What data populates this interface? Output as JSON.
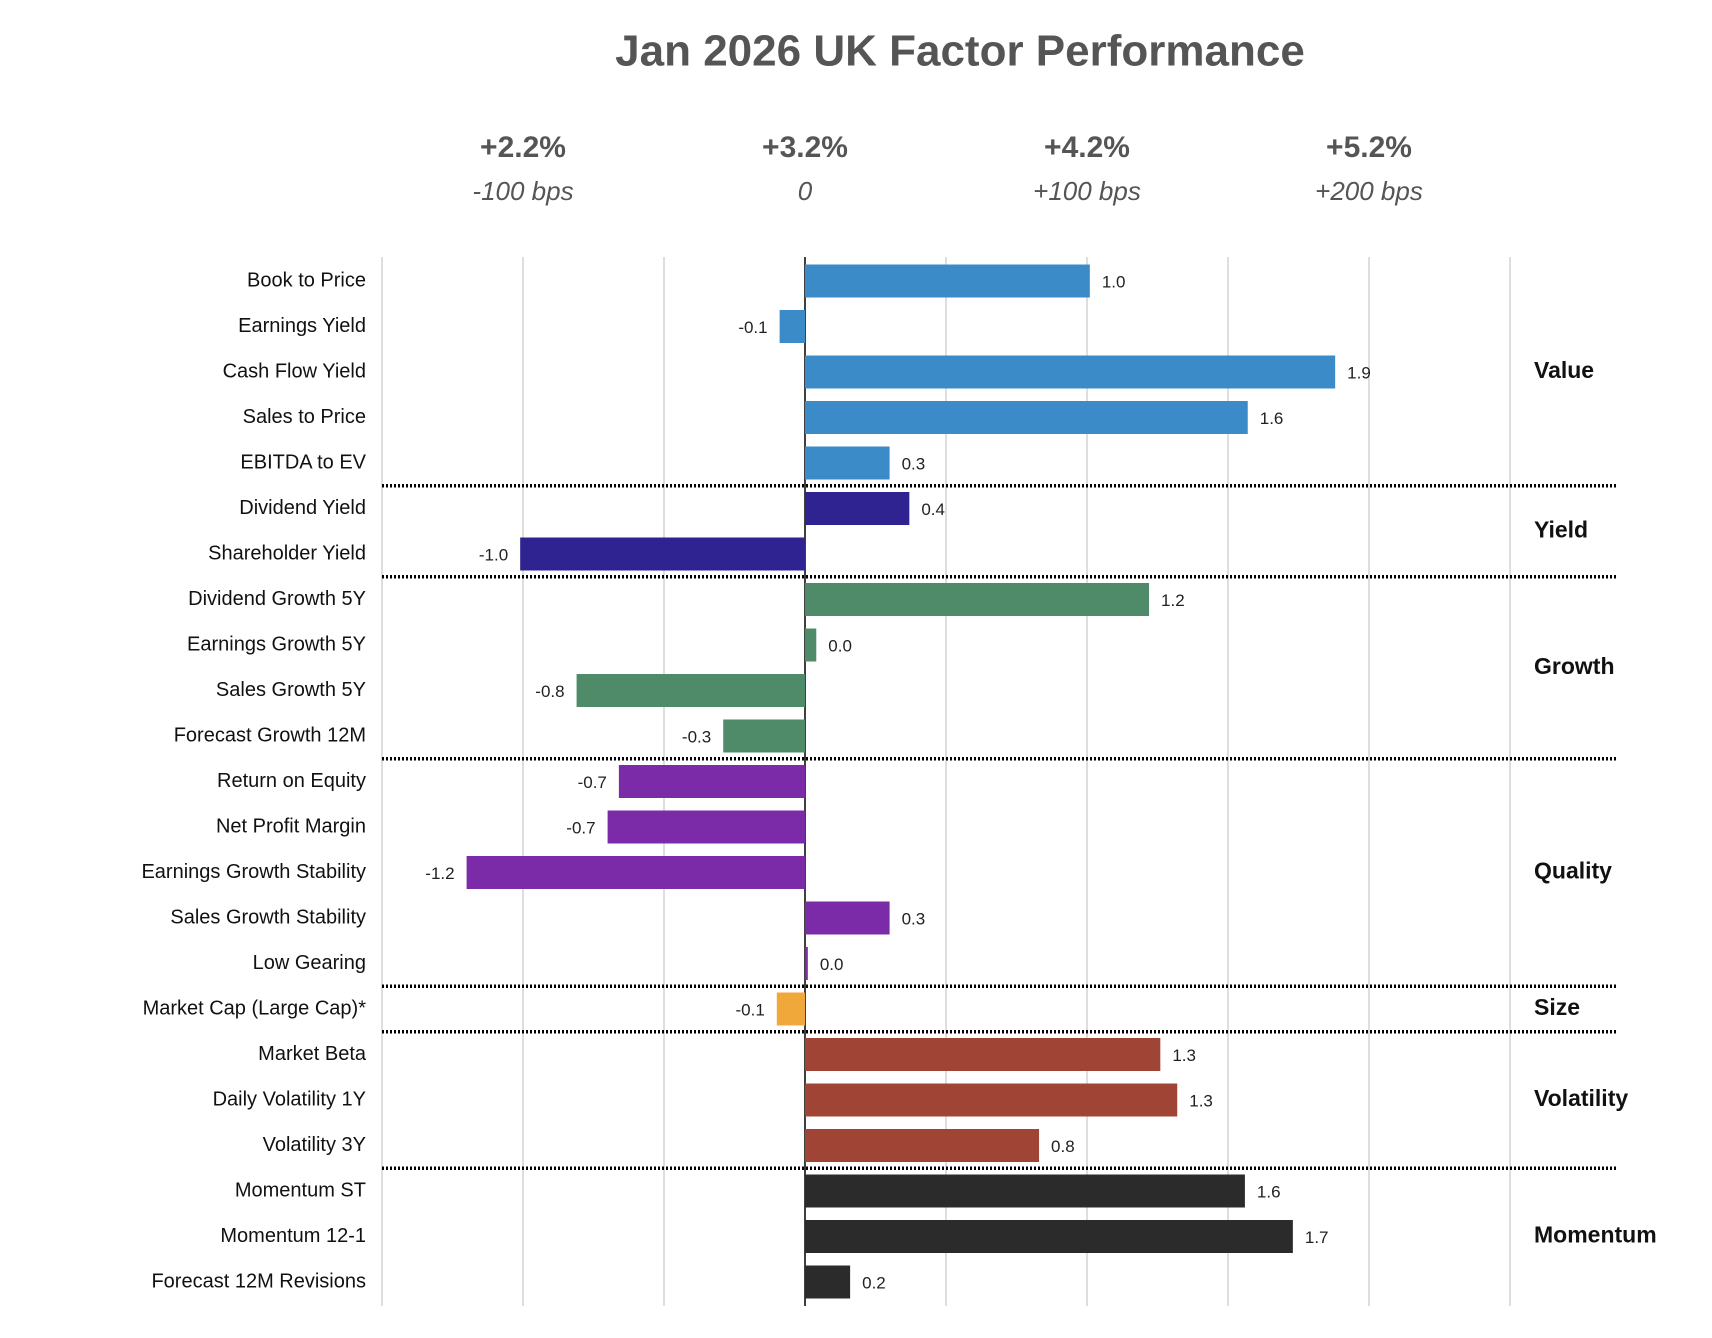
{
  "chart_data": {
    "type": "bar",
    "orientation": "horizontal",
    "title": "Jan 2026 UK Factor Performance",
    "xlim": [
      -1.5,
      2.5
    ],
    "xticks": [
      -1.5,
      -1,
      -0.5,
      0,
      0.5,
      1,
      1.5,
      2,
      2.5
    ],
    "grid": true,
    "top_labels": [
      {
        "value": -1,
        "label": "+2.2%",
        "sublabel": "-100 bps"
      },
      {
        "value": 0,
        "label": "+3.2%",
        "sublabel": "0"
      },
      {
        "value": 1,
        "label": "+4.2%",
        "sublabel": "+100 bps"
      },
      {
        "value": 2,
        "label": "+5.2%",
        "sublabel": "+200 bps"
      }
    ],
    "groups": [
      {
        "name": "Value",
        "color": "#3b8bc9",
        "categories": [
          "Book to Price",
          "Earnings Yield",
          "Cash Flow Yield",
          "Sales to Price",
          "EBITDA to EV"
        ],
        "values": [
          1.01,
          -0.09,
          1.88,
          1.57,
          0.3
        ],
        "value_labels": [
          "1.0",
          "-0.1",
          "1.9",
          "1.6",
          "0.3"
        ]
      },
      {
        "name": "Yield",
        "color": "#2e2391",
        "categories": [
          "Dividend Yield",
          "Shareholder Yield"
        ],
        "values": [
          0.37,
          -1.01
        ],
        "value_labels": [
          "0.4",
          "-1.0"
        ]
      },
      {
        "name": "Growth",
        "color": "#4f8b69",
        "categories": [
          "Dividend Growth 5Y",
          "Earnings Growth 5Y",
          "Sales Growth 5Y",
          "Forecast Growth 12M"
        ],
        "values": [
          1.22,
          0.04,
          -0.81,
          -0.29
        ],
        "value_labels": [
          "1.2",
          "0.0",
          "-0.8",
          "-0.3"
        ]
      },
      {
        "name": "Quality",
        "color": "#7b2ba8",
        "categories": [
          "Return on Equity",
          "Net Profit Margin",
          "Earnings Growth Stability",
          "Sales Growth Stability",
          "Low Gearing"
        ],
        "values": [
          -0.66,
          -0.7,
          -1.2,
          0.3,
          0.01
        ],
        "value_labels": [
          "-0.7",
          "-0.7",
          "-1.2",
          "0.3",
          "0.0"
        ]
      },
      {
        "name": "Size",
        "color": "#f0a83a",
        "categories": [
          "Market Cap (Large Cap)*"
        ],
        "values": [
          -0.1
        ],
        "value_labels": [
          "-0.1"
        ]
      },
      {
        "name": "Volatility",
        "color": "#a04536",
        "categories": [
          "Market Beta",
          "Daily Volatility 1Y",
          "Volatility 3Y"
        ],
        "values": [
          1.26,
          1.32,
          0.83
        ],
        "value_labels": [
          "1.3",
          "1.3",
          "0.8"
        ]
      },
      {
        "name": "Momentum",
        "color": "#2b2b2b",
        "categories": [
          "Momentum ST",
          "Momentum 12-1",
          "Forecast 12M Revisions"
        ],
        "values": [
          1.56,
          1.73,
          0.16
        ],
        "value_labels": [
          "1.6",
          "1.7",
          "0.2"
        ]
      }
    ]
  }
}
